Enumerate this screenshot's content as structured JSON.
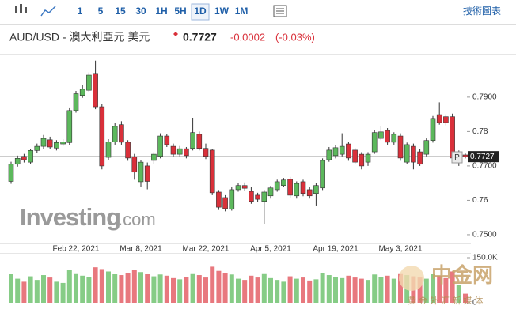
{
  "toolbar": {
    "intervals": [
      "1",
      "5",
      "15",
      "30",
      "1H",
      "5H",
      "1D",
      "1W",
      "1M"
    ],
    "active": "1D",
    "link": "技術圖表"
  },
  "header": {
    "title": "AUD/USD - 澳大利亞元 美元",
    "change": -0.0002,
    "change_percent": "(-0.03%)"
  },
  "watermark": {
    "brand": "Investing",
    "suffix": ".com",
    "overlay": "中金网",
    "overlay_sub": "黄 金 外 汇 新 媒 体"
  },
  "chart_data": {
    "type": "candlestick",
    "categories": [
      null,
      null,
      null,
      null,
      null,
      null,
      null,
      null,
      null,
      null,
      "Feb 22, 2021",
      null,
      null,
      null,
      null,
      null,
      null,
      null,
      null,
      null,
      "Mar 8, 2021",
      null,
      null,
      null,
      null,
      null,
      null,
      null,
      null,
      null,
      "Mar 22, 2021",
      null,
      null,
      null,
      null,
      null,
      null,
      null,
      null,
      null,
      "Apr 5, 2021",
      null,
      null,
      null,
      null,
      null,
      null,
      null,
      null,
      null,
      "Apr 19, 2021",
      null,
      null,
      null,
      null,
      null,
      null,
      null,
      null,
      null,
      "May 3, 2021",
      null,
      null,
      null,
      null,
      null,
      null,
      null,
      null,
      null,
      null
    ],
    "open": [
      0.7655,
      0.7705,
      0.7728,
      0.7711,
      0.7745,
      0.7757,
      0.7776,
      0.7752,
      0.7764,
      0.7768,
      0.7861,
      0.7905,
      0.792,
      0.7969,
      0.7872,
      0.7725,
      0.777,
      0.782,
      0.7769,
      0.7726,
      0.7654,
      0.77,
      0.7716,
      0.7728,
      0.7787,
      0.7757,
      0.7734,
      0.775,
      0.7751,
      0.7792,
      0.7751,
      0.7746,
      0.7624,
      0.7608,
      0.7574,
      0.7631,
      0.7643,
      0.7626,
      0.7615,
      0.7597,
      0.7613,
      0.7631,
      0.7643,
      0.7661,
      0.7613,
      0.7654,
      0.7631,
      0.762,
      0.7636,
      0.7718,
      0.773,
      0.7734,
      0.7764,
      0.7746,
      0.7734,
      0.7711,
      0.7741,
      0.778,
      0.7803,
      0.7769,
      0.7787,
      0.7711,
      0.7757,
      0.7741,
      0.7734,
      0.7774,
      0.7849,
      0.7843,
      0.7843,
      0.7718,
      0.7732
    ],
    "close": [
      0.7705,
      0.7722,
      0.7718,
      0.7745,
      0.7757,
      0.778,
      0.7755,
      0.7768,
      0.777,
      0.7861,
      0.791,
      0.7923,
      0.7964,
      0.7872,
      0.77,
      0.777,
      0.7815,
      0.7769,
      0.7723,
      0.7682,
      0.7711,
      0.7655,
      0.7734,
      0.7787,
      0.7762,
      0.7734,
      0.775,
      0.773,
      0.7797,
      0.7751,
      0.7728,
      0.7622,
      0.758,
      0.7576,
      0.7631,
      0.7643,
      0.7635,
      0.7597,
      0.7603,
      0.7624,
      0.7636,
      0.7654,
      0.7659,
      0.7615,
      0.7649,
      0.762,
      0.7613,
      0.7643,
      0.7716,
      0.7746,
      0.7753,
      0.7757,
      0.7723,
      0.7711,
      0.77,
      0.7734,
      0.7797,
      0.7799,
      0.7769,
      0.7792,
      0.7723,
      0.7762,
      0.7711,
      0.7705,
      0.7774,
      0.7838,
      0.7826,
      0.7826,
      0.7723,
      0.7732,
      0.7727
    ],
    "high": [
      0.7712,
      0.773,
      0.7735,
      0.775,
      0.7765,
      0.779,
      0.7785,
      0.7775,
      0.7778,
      0.787,
      0.7918,
      0.7935,
      0.7972,
      0.8006,
      0.788,
      0.7778,
      0.7825,
      0.783,
      0.7775,
      0.7735,
      0.7718,
      0.771,
      0.774,
      0.7795,
      0.7792,
      0.7765,
      0.7758,
      0.7755,
      0.784,
      0.78,
      0.7765,
      0.775,
      0.763,
      0.7615,
      0.7638,
      0.765,
      0.7652,
      0.764,
      0.7622,
      0.763,
      0.7642,
      0.766,
      0.7665,
      0.7668,
      0.7655,
      0.766,
      0.764,
      0.765,
      0.7722,
      0.7755,
      0.776,
      0.7795,
      0.777,
      0.7752,
      0.774,
      0.774,
      0.7805,
      0.7815,
      0.781,
      0.7798,
      0.7795,
      0.7768,
      0.7765,
      0.775,
      0.778,
      0.7845,
      0.7885,
      0.785,
      0.7852,
      0.7745,
      0.7736
    ],
    "low": [
      0.7648,
      0.7698,
      0.771,
      0.7705,
      0.7738,
      0.775,
      0.7748,
      0.7745,
      0.7758,
      0.776,
      0.7855,
      0.7898,
      0.7915,
      0.7865,
      0.769,
      0.7718,
      0.7762,
      0.7762,
      0.7715,
      0.766,
      0.764,
      0.7632,
      0.7705,
      0.7722,
      0.7755,
      0.7728,
      0.7728,
      0.7722,
      0.7745,
      0.7745,
      0.772,
      0.7615,
      0.7572,
      0.7568,
      0.757,
      0.7625,
      0.7628,
      0.759,
      0.7595,
      0.7532,
      0.7605,
      0.7625,
      0.7638,
      0.7608,
      0.7605,
      0.7612,
      0.7605,
      0.7585,
      0.763,
      0.7712,
      0.7722,
      0.7728,
      0.7715,
      0.7705,
      0.769,
      0.77,
      0.7735,
      0.7775,
      0.7762,
      0.7762,
      0.7715,
      0.7705,
      0.769,
      0.77,
      0.7728,
      0.7768,
      0.782,
      0.7818,
      0.7715,
      0.77,
      0.7722
    ],
    "volume": [
      95000,
      80000,
      70000,
      88000,
      76000,
      92000,
      84000,
      70000,
      66000,
      110000,
      98000,
      90000,
      86000,
      118000,
      112000,
      104000,
      96000,
      92000,
      100000,
      108000,
      102000,
      96000,
      88000,
      94000,
      90000,
      82000,
      78000,
      86000,
      98000,
      92000,
      84000,
      120000,
      106000,
      100000,
      94000,
      80000,
      76000,
      90000,
      84000,
      98000,
      82000,
      76000,
      70000,
      88000,
      80000,
      84000,
      74000,
      78000,
      100000,
      92000,
      86000,
      82000,
      90000,
      84000,
      80000,
      76000,
      94000,
      86000,
      90000,
      80000,
      98000,
      92000,
      88000,
      84000,
      80000,
      96000,
      90000,
      82000,
      104000,
      60000,
      30000
    ],
    "last_price": 0.7727,
    "marker_label": "P",
    "ylim": [
      0.747,
      0.801
    ],
    "yticks": [
      {
        "value": 0.75,
        "label": "0.7500"
      },
      0.76,
      {
        "value": 0.77,
        "label": "0.7700"
      },
      0.78,
      {
        "value": 0.79,
        "label": "0.7900"
      }
    ],
    "volume_lim": [
      0,
      150000
    ],
    "volume_ticks": [
      {
        "value": 150000,
        "label": "150.0K"
      },
      0
    ],
    "up_color": "#5cb85c",
    "down_color": "#d9303a",
    "volume_up_color": "#86cc86",
    "volume_down_color": "#e8787e"
  }
}
